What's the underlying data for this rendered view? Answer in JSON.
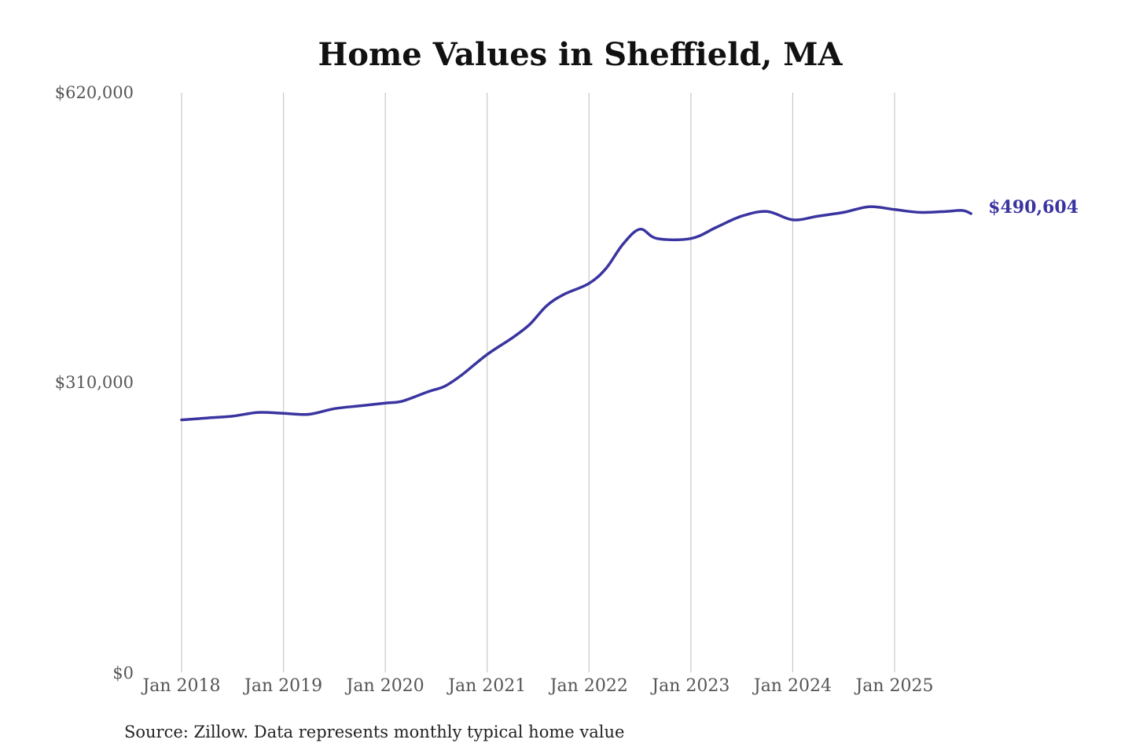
{
  "chart_data": {
    "type": "line",
    "title": "Home Values in Sheffield, MA",
    "xlabel": "",
    "ylabel": "",
    "ylim": [
      0,
      620000
    ],
    "y_ticks": [
      {
        "value": 620000,
        "label": "$620,000"
      },
      {
        "value": 310000,
        "label": "$310,000"
      },
      {
        "value": 0,
        "label": "$0"
      }
    ],
    "x_ticks": [
      {
        "value": "2018-01",
        "label": "Jan 2018"
      },
      {
        "value": "2019-01",
        "label": "Jan 2019"
      },
      {
        "value": "2020-01",
        "label": "Jan 2020"
      },
      {
        "value": "2021-01",
        "label": "Jan 2021"
      },
      {
        "value": "2022-01",
        "label": "Jan 2022"
      },
      {
        "value": "2023-01",
        "label": "Jan 2023"
      },
      {
        "value": "2024-01",
        "label": "Jan 2024"
      },
      {
        "value": "2025-01",
        "label": "Jan 2025"
      }
    ],
    "grid": {
      "vertical": true,
      "horizontal": false
    },
    "legend": "none",
    "series": [
      {
        "color": "#3a34a0",
        "end_label": "$490,604",
        "points": [
          {
            "x": "2018-01",
            "y": 270000
          },
          {
            "x": "2018-04",
            "y": 272000
          },
          {
            "x": "2018-07",
            "y": 274000
          },
          {
            "x": "2018-10",
            "y": 278000
          },
          {
            "x": "2019-01",
            "y": 277000
          },
          {
            "x": "2019-04",
            "y": 276000
          },
          {
            "x": "2019-07",
            "y": 282000
          },
          {
            "x": "2019-10",
            "y": 285000
          },
          {
            "x": "2020-01",
            "y": 288000
          },
          {
            "x": "2020-03",
            "y": 290000
          },
          {
            "x": "2020-06",
            "y": 300000
          },
          {
            "x": "2020-08",
            "y": 306000
          },
          {
            "x": "2020-10",
            "y": 318000
          },
          {
            "x": "2021-01",
            "y": 340000
          },
          {
            "x": "2021-04",
            "y": 358000
          },
          {
            "x": "2021-06",
            "y": 372000
          },
          {
            "x": "2021-08",
            "y": 392000
          },
          {
            "x": "2021-10",
            "y": 404000
          },
          {
            "x": "2022-01",
            "y": 416000
          },
          {
            "x": "2022-03",
            "y": 432000
          },
          {
            "x": "2022-05",
            "y": 458000
          },
          {
            "x": "2022-07",
            "y": 474000
          },
          {
            "x": "2022-09",
            "y": 464000
          },
          {
            "x": "2023-01",
            "y": 464000
          },
          {
            "x": "2023-04",
            "y": 476000
          },
          {
            "x": "2023-07",
            "y": 488000
          },
          {
            "x": "2023-10",
            "y": 493000
          },
          {
            "x": "2024-01",
            "y": 484000
          },
          {
            "x": "2024-04",
            "y": 488000
          },
          {
            "x": "2024-07",
            "y": 492000
          },
          {
            "x": "2024-10",
            "y": 498000
          },
          {
            "x": "2025-01",
            "y": 495000
          },
          {
            "x": "2025-04",
            "y": 492000
          },
          {
            "x": "2025-07",
            "y": 493000
          },
          {
            "x": "2025-09",
            "y": 494000
          },
          {
            "x": "2025-10",
            "y": 490604
          }
        ]
      }
    ]
  },
  "source_note": "Source: Zillow. Data represents monthly typical home value"
}
